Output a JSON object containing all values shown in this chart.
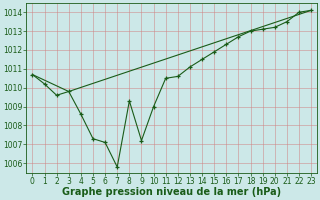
{
  "xlabel": "Graphe pression niveau de la mer (hPa)",
  "ylim": [
    1005.5,
    1014.5
  ],
  "xlim": [
    -0.5,
    23.5
  ],
  "yticks": [
    1006,
    1007,
    1008,
    1009,
    1010,
    1011,
    1012,
    1013,
    1014
  ],
  "xticks": [
    0,
    1,
    2,
    3,
    4,
    5,
    6,
    7,
    8,
    9,
    10,
    11,
    12,
    13,
    14,
    15,
    16,
    17,
    18,
    19,
    20,
    21,
    22,
    23
  ],
  "series1_x": [
    0,
    1,
    2,
    3,
    4,
    5,
    6,
    7,
    8,
    9,
    10,
    11,
    12,
    13,
    14,
    15,
    16,
    17,
    18,
    19,
    20,
    21,
    22,
    23
  ],
  "series1_y": [
    1010.7,
    1010.2,
    1009.6,
    1009.8,
    1008.6,
    1007.3,
    1007.1,
    1005.8,
    1009.3,
    1007.2,
    1009.0,
    1010.5,
    1010.6,
    1011.1,
    1011.5,
    1011.9,
    1012.3,
    1012.7,
    1013.0,
    1013.1,
    1013.2,
    1013.5,
    1014.0,
    1014.1
  ],
  "series2_x": [
    0,
    3,
    23
  ],
  "series2_y": [
    1010.7,
    1009.8,
    1014.1
  ],
  "line_color": "#1a5c18",
  "bg_color": "#cce8e8",
  "grid_color": "#d08080",
  "label_color": "#1a5c18",
  "tick_fontsize": 5.5,
  "xlabel_fontsize": 7.0
}
